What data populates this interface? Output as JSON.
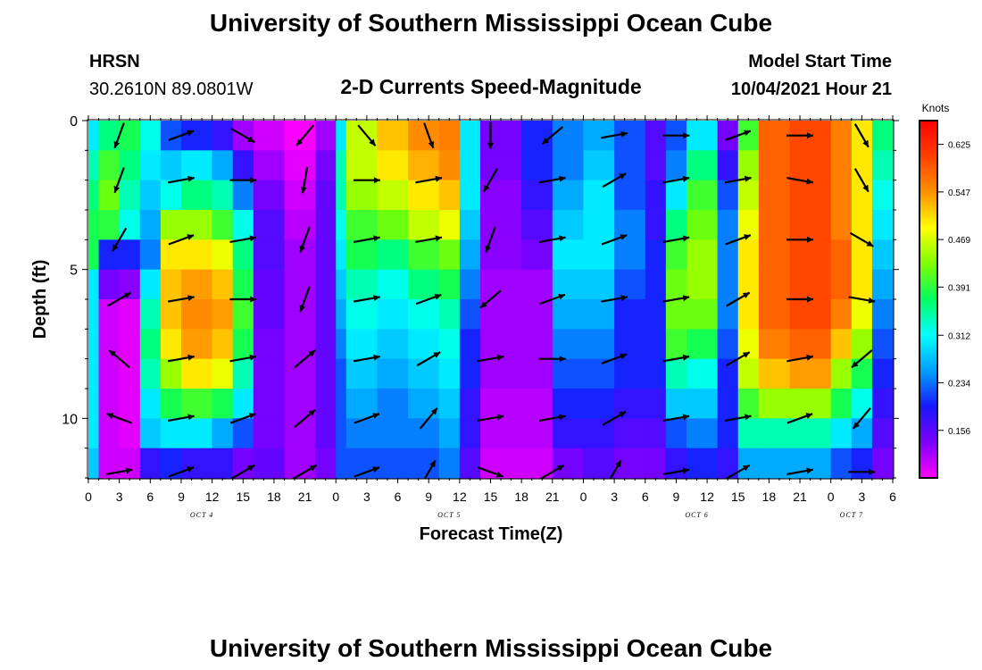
{
  "header": {
    "title": "University of Southern Mississippi Ocean Cube",
    "station": "HRSN",
    "coords": "30.2610N  89.0801W",
    "product": "2-D Currents Speed-Magnitude",
    "model_label": "Model Start Time",
    "model_time": "10/04/2021 Hour 21"
  },
  "footer": {
    "title": "University of Southern Mississippi Ocean Cube"
  },
  "chart_data": {
    "type": "heatmap",
    "xlabel": "Forecast Time(Z)",
    "ylabel": "Depth (ft)",
    "x_tick_labels": [
      "0",
      "3",
      "6",
      "9",
      "12",
      "15",
      "18",
      "21",
      "0",
      "3",
      "6",
      "9",
      "12",
      "15",
      "18",
      "21",
      "0",
      "3",
      "6",
      "9",
      "12",
      "15",
      "18",
      "21",
      "0",
      "3",
      "6"
    ],
    "date_labels": [
      {
        "label": "OCT 4",
        "hour_index": 11
      },
      {
        "label": "OCT 5",
        "hour_index": 35
      },
      {
        "label": "OCT 6",
        "hour_index": 59
      },
      {
        "label": "OCT 7",
        "hour_index": 74
      }
    ],
    "x_range_hours": [
      0,
      78
    ],
    "y_range_ft": [
      0,
      12
    ],
    "y_ticks": [
      0,
      5,
      10
    ],
    "colorbar": {
      "unit": "Knots",
      "min": 0.078,
      "max": 0.664,
      "tick_labels": [
        "0.625",
        "0.547",
        "0.469",
        "0.391",
        "0.312",
        "0.234",
        "0.156"
      ],
      "tick_values": [
        0.625,
        0.547,
        0.469,
        0.391,
        0.312,
        0.234,
        0.156
      ],
      "colors": [
        "#ff00ff",
        "#7b00ff",
        "#1818ff",
        "#00a0ff",
        "#00ffff",
        "#00ff60",
        "#80ff00",
        "#ffff00",
        "#ff9000",
        "#ff4000",
        "#ff0000"
      ]
    },
    "depth_bins_ft": [
      0,
      1,
      2,
      3,
      4,
      5,
      6,
      7,
      8,
      9,
      10,
      11,
      12
    ],
    "speed_profile_segments": [
      {
        "hours": [
          0,
          1
        ],
        "speed_knots": [
          0.3,
          0.34,
          0.36,
          0.38,
          0.38,
          0.3,
          0.3,
          0.3,
          0.3,
          0.3,
          0.3,
          0.28
        ]
      },
      {
        "hours": [
          1,
          3
        ],
        "speed_knots": [
          0.36,
          0.4,
          0.42,
          0.39,
          0.2,
          0.14,
          0.1,
          0.1,
          0.1,
          0.1,
          0.1,
          0.1
        ]
      },
      {
        "hours": [
          3,
          5
        ],
        "speed_knots": [
          0.38,
          0.36,
          0.34,
          0.32,
          0.2,
          0.13,
          0.09,
          0.09,
          0.09,
          0.09,
          0.09,
          0.1
        ]
      },
      {
        "hours": [
          5,
          7
        ],
        "speed_knots": [
          0.32,
          0.3,
          0.28,
          0.26,
          0.24,
          0.3,
          0.34,
          0.36,
          0.34,
          0.3,
          0.28,
          0.18
        ]
      },
      {
        "hours": [
          7,
          9
        ],
        "speed_knots": [
          0.22,
          0.28,
          0.32,
          0.44,
          0.5,
          0.52,
          0.52,
          0.5,
          0.44,
          0.38,
          0.3,
          0.2
        ]
      },
      {
        "hours": [
          9,
          12
        ],
        "speed_knots": [
          0.2,
          0.3,
          0.36,
          0.44,
          0.5,
          0.54,
          0.55,
          0.54,
          0.5,
          0.4,
          0.3,
          0.18
        ]
      },
      {
        "hours": [
          12,
          14
        ],
        "speed_knots": [
          0.18,
          0.26,
          0.34,
          0.4,
          0.48,
          0.52,
          0.54,
          0.52,
          0.48,
          0.38,
          0.26,
          0.18
        ]
      },
      {
        "hours": [
          14,
          16
        ],
        "speed_knots": [
          0.12,
          0.18,
          0.24,
          0.32,
          0.36,
          0.38,
          0.4,
          0.38,
          0.34,
          0.3,
          0.22,
          0.14
        ]
      },
      {
        "hours": [
          16,
          19
        ],
        "speed_knots": [
          0.1,
          0.12,
          0.14,
          0.16,
          0.16,
          0.15,
          0.15,
          0.14,
          0.14,
          0.14,
          0.14,
          0.15
        ]
      },
      {
        "hours": [
          19,
          22
        ],
        "speed_knots": [
          0.08,
          0.09,
          0.1,
          0.11,
          0.12,
          0.12,
          0.12,
          0.12,
          0.12,
          0.12,
          0.12,
          0.12
        ]
      },
      {
        "hours": [
          22,
          24
        ],
        "speed_knots": [
          0.12,
          0.14,
          0.15,
          0.15,
          0.15,
          0.15,
          0.15,
          0.15,
          0.15,
          0.15,
          0.15,
          0.14
        ]
      },
      {
        "hours": [
          24,
          25
        ],
        "speed_knots": [
          0.3,
          0.34,
          0.34,
          0.32,
          0.3,
          0.28,
          0.26,
          0.24,
          0.22,
          0.22,
          0.22,
          0.22
        ]
      },
      {
        "hours": [
          25,
          28
        ],
        "speed_knots": [
          0.46,
          0.46,
          0.44,
          0.4,
          0.38,
          0.34,
          0.32,
          0.3,
          0.28,
          0.26,
          0.24,
          0.22
        ]
      },
      {
        "hours": [
          28,
          31
        ],
        "speed_knots": [
          0.52,
          0.5,
          0.46,
          0.42,
          0.36,
          0.32,
          0.3,
          0.28,
          0.26,
          0.24,
          0.24,
          0.22
        ]
      },
      {
        "hours": [
          31,
          34
        ],
        "speed_knots": [
          0.55,
          0.53,
          0.5,
          0.46,
          0.4,
          0.36,
          0.32,
          0.3,
          0.28,
          0.26,
          0.24,
          0.22
        ]
      },
      {
        "hours": [
          34,
          36
        ],
        "speed_knots": [
          0.56,
          0.55,
          0.52,
          0.48,
          0.42,
          0.38,
          0.34,
          0.32,
          0.3,
          0.28,
          0.26,
          0.24
        ]
      },
      {
        "hours": [
          36,
          38
        ],
        "speed_knots": [
          0.3,
          0.3,
          0.3,
          0.28,
          0.26,
          0.24,
          0.22,
          0.2,
          0.2,
          0.18,
          0.18,
          0.16
        ]
      },
      {
        "hours": [
          38,
          42
        ],
        "speed_knots": [
          0.14,
          0.14,
          0.13,
          0.13,
          0.13,
          0.12,
          0.12,
          0.12,
          0.12,
          0.11,
          0.11,
          0.1
        ]
      },
      {
        "hours": [
          42,
          45
        ],
        "speed_knots": [
          0.2,
          0.2,
          0.18,
          0.16,
          0.14,
          0.12,
          0.12,
          0.12,
          0.12,
          0.11,
          0.11,
          0.1
        ]
      },
      {
        "hours": [
          45,
          48
        ],
        "speed_knots": [
          0.24,
          0.24,
          0.26,
          0.28,
          0.3,
          0.28,
          0.26,
          0.24,
          0.22,
          0.2,
          0.18,
          0.14
        ]
      },
      {
        "hours": [
          48,
          51
        ],
        "speed_knots": [
          0.26,
          0.28,
          0.3,
          0.3,
          0.3,
          0.28,
          0.26,
          0.24,
          0.22,
          0.2,
          0.18,
          0.16
        ]
      },
      {
        "hours": [
          51,
          54
        ],
        "speed_knots": [
          0.22,
          0.22,
          0.22,
          0.24,
          0.24,
          0.22,
          0.2,
          0.2,
          0.2,
          0.18,
          0.16,
          0.14
        ]
      },
      {
        "hours": [
          54,
          56
        ],
        "speed_knots": [
          0.16,
          0.16,
          0.18,
          0.18,
          0.2,
          0.2,
          0.2,
          0.2,
          0.2,
          0.18,
          0.16,
          0.14
        ]
      },
      {
        "hours": [
          56,
          58
        ],
        "speed_knots": [
          0.22,
          0.24,
          0.3,
          0.36,
          0.4,
          0.42,
          0.42,
          0.4,
          0.34,
          0.28,
          0.22,
          0.18
        ]
      },
      {
        "hours": [
          58,
          61
        ],
        "speed_knots": [
          0.3,
          0.36,
          0.4,
          0.42,
          0.44,
          0.44,
          0.42,
          0.38,
          0.32,
          0.28,
          0.24,
          0.2
        ]
      },
      {
        "hours": [
          61,
          63
        ],
        "speed_knots": [
          0.14,
          0.18,
          0.22,
          0.24,
          0.24,
          0.24,
          0.24,
          0.22,
          0.2,
          0.2,
          0.2,
          0.18
        ]
      },
      {
        "hours": [
          63,
          65
        ],
        "speed_knots": [
          0.4,
          0.44,
          0.46,
          0.48,
          0.5,
          0.5,
          0.5,
          0.48,
          0.46,
          0.4,
          0.34,
          0.26
        ]
      },
      {
        "hours": [
          65,
          68
        ],
        "speed_knots": [
          0.58,
          0.58,
          0.58,
          0.58,
          0.58,
          0.58,
          0.58,
          0.56,
          0.52,
          0.44,
          0.34,
          0.26
        ]
      },
      {
        "hours": [
          68,
          72
        ],
        "speed_knots": [
          0.6,
          0.6,
          0.6,
          0.6,
          0.6,
          0.6,
          0.6,
          0.58,
          0.54,
          0.44,
          0.34,
          0.26
        ]
      },
      {
        "hours": [
          72,
          74
        ],
        "speed_knots": [
          0.56,
          0.56,
          0.56,
          0.56,
          0.58,
          0.58,
          0.56,
          0.52,
          0.44,
          0.38,
          0.3,
          0.22
        ]
      },
      {
        "hours": [
          74,
          76
        ],
        "speed_knots": [
          0.5,
          0.5,
          0.5,
          0.5,
          0.5,
          0.5,
          0.48,
          0.44,
          0.38,
          0.32,
          0.26,
          0.2
        ]
      },
      {
        "hours": [
          76,
          78
        ],
        "speed_knots": [
          0.36,
          0.34,
          0.32,
          0.3,
          0.28,
          0.26,
          0.24,
          0.22,
          0.2,
          0.18,
          0.16,
          0.14
        ]
      }
    ],
    "vector_time_hours": [
      3,
      9,
      15,
      21,
      27,
      33,
      39,
      45,
      51,
      57,
      63,
      69,
      75
    ],
    "vector_depths_ft": [
      0.5,
      2,
      4,
      6,
      8,
      10,
      11.8
    ],
    "vector_directions_deg": [
      [
        200,
        70,
        120,
        220,
        140,
        160,
        180,
        230,
        80,
        90,
        70,
        90,
        150
      ],
      [
        200,
        80,
        90,
        190,
        90,
        80,
        210,
        80,
        60,
        80,
        80,
        100,
        150
      ],
      [
        210,
        70,
        80,
        200,
        80,
        80,
        200,
        80,
        70,
        80,
        70,
        90,
        120
      ],
      [
        60,
        80,
        90,
        200,
        80,
        70,
        230,
        70,
        80,
        80,
        60,
        90,
        100
      ],
      [
        310,
        80,
        80,
        50,
        80,
        60,
        80,
        90,
        70,
        80,
        60,
        80,
        230
      ],
      [
        290,
        80,
        70,
        50,
        70,
        40,
        80,
        80,
        60,
        80,
        80,
        70,
        220
      ],
      [
        80,
        70,
        60,
        60,
        70,
        30,
        110,
        60,
        30,
        80,
        60,
        80,
        90
      ]
    ]
  }
}
